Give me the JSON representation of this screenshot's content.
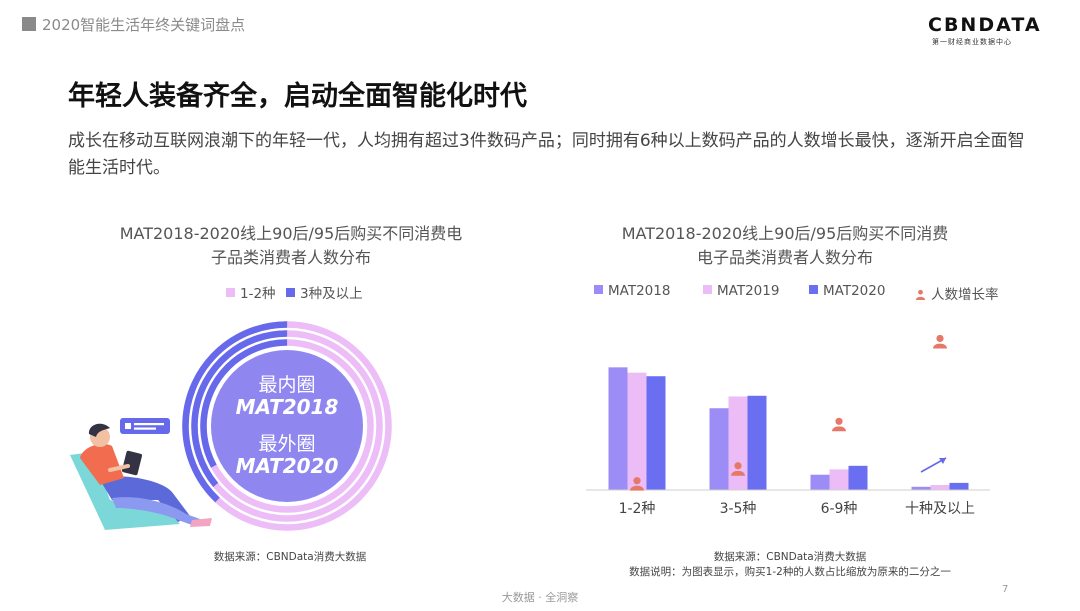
{
  "header": {
    "title": "2020智能生活年终关键词盘点"
  },
  "logo": {
    "main": "CBNDATA",
    "sub": "第一财经商业数据中心"
  },
  "main_title": "年轻人装备齐全，启动全面智能化时代",
  "subtitle": "成长在移动互联网浪潮下的年轻一代，人均拥有超过3件数码产品；同时拥有6种以上数码产品的人数增长最快，逐渐开启全面智能生活时代。",
  "colors": {
    "mat2018": "#9b8df5",
    "mat2019": "#ebbcf5",
    "mat2020": "#6a6ef0",
    "growth": "#e67868",
    "pink_ring": "#ecbdf6",
    "blue_ring": "#6669ea",
    "center_fill": "#8f86f0"
  },
  "chart_data": [
    {
      "type": "pie",
      "title_line1": "MAT2018-2020线上90后/95后购买不同消费电",
      "title_line2": "子品类消费者人数分布",
      "legend": [
        {
          "label": "1-2种",
          "color": "#ecbdf6"
        },
        {
          "label": "3种及以上",
          "color": "#6669ea"
        }
      ],
      "center_labels": [
        "最内圈",
        "MAT2018",
        "最外圈",
        "MAT2020"
      ],
      "rings": [
        {
          "name": "MAT2018",
          "values": {
            "1-2种": 0.67,
            "3种及以上": 0.33
          }
        },
        {
          "name": "MAT2019",
          "values": {
            "1-2种": 0.64,
            "3种及以上": 0.36
          }
        },
        {
          "name": "MAT2020",
          "values": {
            "1-2种": 0.62,
            "3种及以上": 0.38
          }
        }
      ],
      "icon": "person-with-laptop-illustration"
    },
    {
      "type": "bar",
      "title_line1": "MAT2018-2020线上90后/95后购买不同消费",
      "title_line2": "电子品类消费者人数分布",
      "categories": [
        "1-2种",
        "3-5种",
        "6-9种",
        "十种及以上"
      ],
      "series": [
        {
          "name": "MAT2018",
          "values": [
            34.5,
            23,
            4.3,
            0.9
          ]
        },
        {
          "name": "MAT2019",
          "values": [
            33,
            26.3,
            5.8,
            1.4
          ]
        },
        {
          "name": "MAT2020",
          "values": [
            32,
            26.5,
            6.8,
            2.0
          ]
        }
      ],
      "growth": {
        "name": "人数增长率",
        "values": [
          1.5,
          5.7,
          18.2,
          41.5
        ]
      },
      "ylim": [
        0,
        45
      ],
      "legend_position": "top",
      "grid": false
    }
  ],
  "sources": {
    "left": "数据来源：CBNData消费大数据",
    "right": "数据来源：CBNData消费大数据",
    "right_note": "数据说明：为图表显示，购买1-2种的人数占比缩放为原来的二分之一"
  },
  "footer": {
    "text": "大数据 · 全洞察",
    "page": "7"
  }
}
